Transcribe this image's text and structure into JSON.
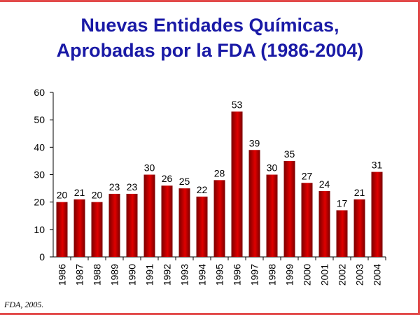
{
  "colors": {
    "bar": "#e00000",
    "bar_dark": "#7a0000",
    "title": "#1a1aa6",
    "frame": "#e24a4a"
  },
  "chart_data": {
    "type": "bar",
    "title": [
      "Nuevas Entidades Químicas,",
      "Aprobadas por la FDA (1986-2004)"
    ],
    "xlabel": "",
    "ylabel": "",
    "ylim": [
      0,
      60
    ],
    "yticks": [
      0,
      10,
      20,
      30,
      40,
      50,
      60
    ],
    "grid": false,
    "categories": [
      "1986",
      "1987",
      "1988",
      "1989",
      "1990",
      "1991",
      "1992",
      "1993",
      "1994",
      "1995",
      "1996",
      "1997",
      "1998",
      "1999",
      "2000",
      "2001",
      "2002",
      "2003",
      "2004"
    ],
    "values": [
      20,
      21,
      20,
      23,
      23,
      30,
      26,
      25,
      22,
      28,
      53,
      39,
      30,
      35,
      27,
      24,
      17,
      21,
      31
    ]
  },
  "source": "FDA, 2005."
}
